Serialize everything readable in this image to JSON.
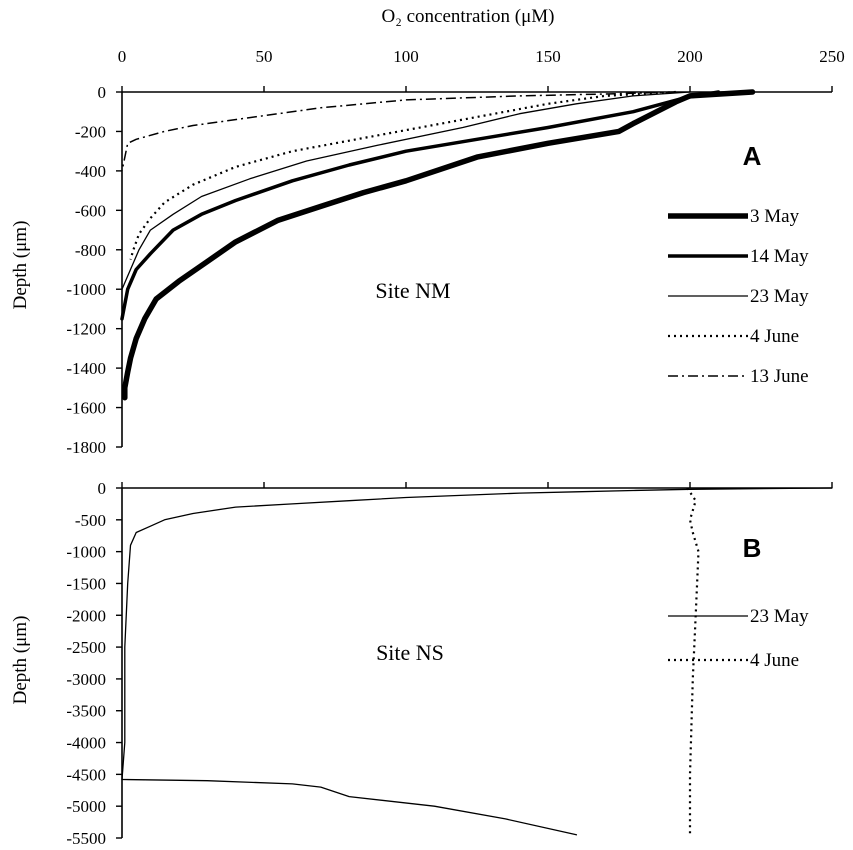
{
  "figure": {
    "x_axis_title": "O₂ concentration (μM)",
    "x_ticks": [
      0,
      50,
      100,
      150,
      200,
      250
    ],
    "xlim": [
      0,
      250
    ]
  },
  "chart_data": [
    {
      "type": "line",
      "panel": "A",
      "annotation": "Site NM",
      "ylabel": "Depth (μm)",
      "xlim": [
        0,
        250
      ],
      "ylim": [
        -1800,
        0
      ],
      "y_ticks": [
        0,
        -200,
        -400,
        -600,
        -800,
        -1000,
        -1200,
        -1400,
        -1600,
        -1800
      ],
      "legend_position": "right",
      "series": [
        {
          "name": "3 May",
          "style": "thick",
          "x": [
            222,
            200,
            195,
            180,
            175,
            150,
            125,
            100,
            85,
            70,
            55,
            40,
            30,
            20,
            12,
            8,
            5,
            3,
            2,
            1,
            1
          ],
          "y": [
            0,
            -20,
            -50,
            -160,
            -200,
            -260,
            -330,
            -450,
            -510,
            -580,
            -650,
            -760,
            -860,
            -960,
            -1050,
            -1150,
            -1250,
            -1350,
            -1420,
            -1500,
            -1550
          ]
        },
        {
          "name": "14 May",
          "style": "medium",
          "x": [
            210,
            198,
            180,
            150,
            125,
            100,
            80,
            60,
            40,
            28,
            18,
            10,
            5,
            2,
            0
          ],
          "y": [
            0,
            -30,
            -100,
            -180,
            -240,
            -300,
            -370,
            -450,
            -550,
            -620,
            -700,
            -820,
            -900,
            -1000,
            -1150
          ]
        },
        {
          "name": "23 May",
          "style": "thin",
          "x": [
            200,
            180,
            160,
            140,
            120,
            90,
            65,
            45,
            28,
            18,
            10,
            6,
            3,
            0
          ],
          "y": [
            0,
            -20,
            -60,
            -110,
            -180,
            -270,
            -350,
            -440,
            -530,
            -620,
            -700,
            -800,
            -900,
            -1000
          ]
        },
        {
          "name": "4 June",
          "style": "dotted",
          "x": [
            195,
            170,
            150,
            120,
            90,
            60,
            40,
            25,
            15,
            10,
            6,
            4,
            3
          ],
          "y": [
            0,
            -20,
            -60,
            -140,
            -220,
            -300,
            -380,
            -470,
            -560,
            -640,
            -720,
            -800,
            -850
          ]
        },
        {
          "name": "13 June",
          "style": "dashdot",
          "x": [
            195,
            170,
            140,
            100,
            70,
            55,
            45,
            35,
            25,
            15,
            5,
            2,
            0
          ],
          "y": [
            0,
            -10,
            -20,
            -40,
            -80,
            -110,
            -130,
            -150,
            -170,
            -200,
            -240,
            -260,
            -400
          ]
        }
      ]
    },
    {
      "type": "line",
      "panel": "B",
      "annotation": "Site NS",
      "ylabel": "Depth (μm)",
      "xlim": [
        0,
        250
      ],
      "ylim": [
        -5500,
        0
      ],
      "y_ticks": [
        0,
        -500,
        -1000,
        -1500,
        -2000,
        -2500,
        -3000,
        -3500,
        -4000,
        -4500,
        -5000,
        -5500
      ],
      "legend_position": "right",
      "series": [
        {
          "name": "23 May",
          "style": "thin",
          "x": [
            250,
            200,
            180,
            160,
            140,
            100,
            80,
            60,
            40,
            25,
            15,
            10,
            5,
            3,
            2,
            1,
            1,
            0
          ],
          "y": [
            0,
            -20,
            -40,
            -60,
            -80,
            -150,
            -200,
            -250,
            -300,
            -400,
            -500,
            -600,
            -700,
            -900,
            -1500,
            -2500,
            -4000,
            -4580
          ]
        },
        {
          "name": "23 May (lower profile)",
          "style": "thin",
          "x": [
            0,
            30,
            60,
            70,
            80,
            110,
            135,
            160
          ],
          "y": [
            -4580,
            -4600,
            -4650,
            -4700,
            -4850,
            -5000,
            -5200,
            -5450
          ]
        },
        {
          "name": "4 June",
          "style": "dotted",
          "x": [
            199,
            202,
            200,
            201,
            203,
            202,
            201,
            200,
            200
          ],
          "y": [
            0,
            -200,
            -500,
            -700,
            -1000,
            -2000,
            -3000,
            -4500,
            -5450
          ]
        }
      ]
    }
  ]
}
